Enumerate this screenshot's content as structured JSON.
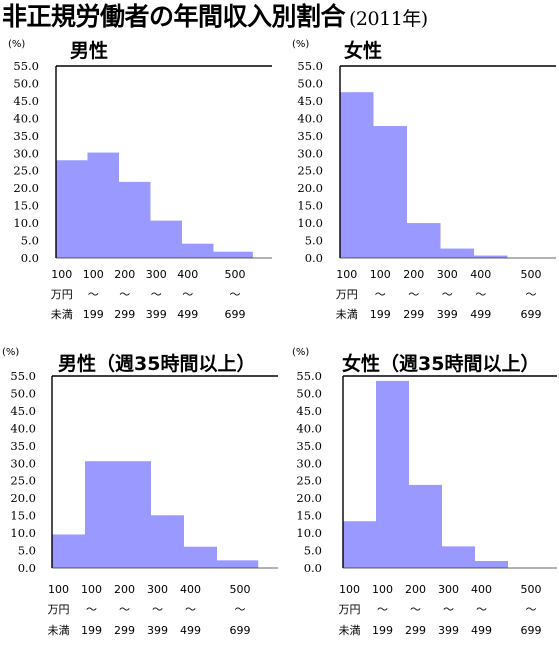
{
  "title": "非正規労働者の年間収入別割合",
  "year": "(2011年)",
  "y_unit": "(%)",
  "colors": {
    "bar": "#9999ff",
    "axis": "#000000",
    "background": "#ffffff"
  },
  "chart_data": [
    {
      "type": "bar",
      "title": "男性",
      "categories": [
        "100万円未満",
        "100~199",
        "200~299",
        "300~399",
        "400~499",
        "500~699"
      ],
      "values": [
        28.0,
        30.2,
        21.8,
        10.7,
        4.1,
        1.8
      ],
      "ylim": [
        0,
        55
      ],
      "yticks": [
        "0.0",
        "5.0",
        "10.0",
        "15.0",
        "20.0",
        "25.0",
        "30.0",
        "35.0",
        "40.0",
        "45.0",
        "50.0",
        "55.0"
      ],
      "grid": false
    },
    {
      "type": "bar",
      "title": "女性",
      "categories": [
        "100万円未満",
        "100~199",
        "200~299",
        "300~399",
        "400~499",
        "500~699"
      ],
      "values": [
        47.5,
        37.8,
        10.0,
        2.7,
        0.7,
        0.0
      ],
      "ylim": [
        0,
        55
      ],
      "yticks": [
        "0.0",
        "5.0",
        "10.0",
        "15.0",
        "20.0",
        "25.0",
        "30.0",
        "35.0",
        "40.0",
        "45.0",
        "50.0",
        "55.0"
      ],
      "grid": false
    },
    {
      "type": "bar",
      "title": "男性（週35時間以上）",
      "categories": [
        "100万円未満",
        "100~199",
        "200~299",
        "300~399",
        "400~499",
        "500~699"
      ],
      "values": [
        9.6,
        30.6,
        30.6,
        15.1,
        6.1,
        2.2
      ],
      "ylim": [
        0,
        55
      ],
      "yticks": [
        "0.0",
        "5.0",
        "10.0",
        "15.0",
        "20.0",
        "25.0",
        "30.0",
        "35.0",
        "40.0",
        "45.0",
        "50.0",
        "55.0"
      ],
      "grid": false
    },
    {
      "type": "bar",
      "title": "女性（週35時間以上）",
      "categories": [
        "100万円未満",
        "100~199",
        "200~299",
        "300~399",
        "400~499",
        "500~699"
      ],
      "values": [
        13.4,
        53.6,
        23.8,
        6.2,
        2.0,
        0.0
      ],
      "ylim": [
        0,
        55
      ],
      "yticks": [
        "0.0",
        "5.0",
        "10.0",
        "15.0",
        "20.0",
        "25.0",
        "30.0",
        "35.0",
        "40.0",
        "45.0",
        "50.0",
        "55.0"
      ],
      "grid": false
    }
  ],
  "x_labels": {
    "row1": [
      "100",
      "100",
      "200",
      "300",
      "400",
      "500"
    ],
    "row2": [
      "万円",
      "～",
      "～",
      "～",
      "～",
      "～"
    ],
    "row3": [
      "未満",
      "199",
      "299",
      "399",
      "499",
      "699"
    ]
  }
}
